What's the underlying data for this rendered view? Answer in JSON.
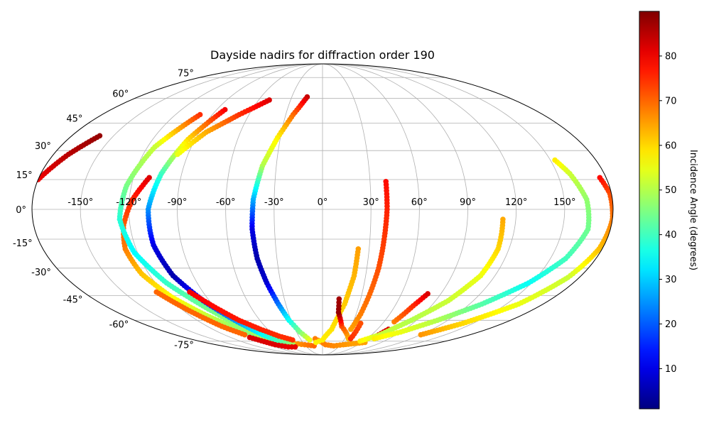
{
  "chart_data": {
    "type": "scatter",
    "projection": "mollweide",
    "title": "Dayside nadirs for diffraction order 190",
    "xlabel": "",
    "ylabel": "",
    "xlim": [
      -180,
      180
    ],
    "ylim": [
      -90,
      90
    ],
    "grid": true,
    "x_ticks": [
      -150,
      -120,
      -90,
      -60,
      -30,
      0,
      30,
      60,
      90,
      120,
      150
    ],
    "x_tick_labels": [
      "-150°",
      "-120°",
      "-90°",
      "-60°",
      "-30°",
      "0°",
      "30°",
      "60°",
      "90°",
      "120°",
      "150°"
    ],
    "y_ticks": [
      75,
      60,
      45,
      30,
      15,
      0,
      -15,
      -30,
      -45,
      -60,
      -75
    ],
    "y_tick_labels": [
      "75°",
      "60°",
      "45°",
      "30°",
      "15°",
      "0°",
      "-15°",
      "-30°",
      "-45°",
      "-60°",
      "-75°"
    ],
    "colorbar": {
      "label": "Incidence Angle (degrees)",
      "colormap": "jet",
      "range": [
        1,
        90
      ],
      "ticks": [
        10,
        20,
        30,
        40,
        50,
        60,
        70,
        80
      ],
      "tick_labels": [
        "10",
        "20",
        "30",
        "40",
        "50",
        "60",
        "70",
        "80"
      ]
    },
    "point_color_note": "color encodes incidence angle (degrees)",
    "tracks": [
      {
        "points": [
          [
            -180,
            15,
            80
          ],
          [
            -170,
            28,
            85
          ],
          [
            -160,
            38,
            88
          ]
        ]
      },
      {
        "points": [
          [
            -110,
            16,
            82
          ],
          [
            -118,
            5,
            76
          ],
          [
            -124,
            -8,
            71
          ],
          [
            -127,
            -20,
            68
          ],
          [
            -125,
            -33,
            62
          ],
          [
            -117,
            -46,
            57
          ],
          [
            -105,
            -57,
            52
          ],
          [
            -92,
            -66,
            47
          ],
          [
            -82,
            -72,
            45
          ]
        ]
      },
      {
        "points": [
          [
            -100,
            50,
            75
          ],
          [
            -115,
            32,
            52
          ],
          [
            -123,
            12,
            45
          ],
          [
            -126,
            -5,
            38
          ],
          [
            -122,
            -22,
            34
          ],
          [
            -112,
            -38,
            39
          ],
          [
            -98,
            -52,
            44
          ],
          [
            -85,
            -64,
            47
          ],
          [
            -75,
            -72,
            50
          ],
          [
            -60,
            -76,
            58
          ],
          [
            -45,
            -77,
            65
          ],
          [
            -30,
            -78,
            68
          ],
          [
            -15,
            -79,
            70
          ]
        ]
      },
      {
        "points": [
          [
            -83,
            53,
            80
          ],
          [
            -95,
            36,
            60
          ],
          [
            -103,
            18,
            40
          ],
          [
            -108,
            0,
            25
          ],
          [
            -108,
            -18,
            10
          ],
          [
            -104,
            -34,
            5
          ],
          [
            -95,
            -48,
            15
          ],
          [
            -84,
            -60,
            25
          ],
          [
            -73,
            -70,
            35
          ],
          [
            -62,
            -76,
            42
          ],
          [
            -50,
            -78,
            48
          ]
        ]
      },
      {
        "points": [
          [
            -50,
            59,
            82
          ],
          [
            -68,
            50,
            75
          ],
          [
            -85,
            40,
            64
          ],
          [
            -97,
            28,
            55
          ]
        ]
      },
      {
        "points": [
          [
            -125,
            -43,
            70
          ],
          [
            -115,
            -54,
            70
          ],
          [
            -105,
            -64,
            70
          ],
          [
            -95,
            -70,
            70
          ]
        ]
      },
      {
        "points": [
          [
            -100,
            -43,
            80
          ],
          [
            -90,
            -52,
            78
          ],
          [
            -80,
            -60,
            77
          ],
          [
            -68,
            -66,
            76
          ],
          [
            -55,
            -71,
            75
          ],
          [
            -42,
            -74,
            75
          ]
        ]
      },
      {
        "points": [
          [
            -95,
            -72,
            82
          ],
          [
            -80,
            -78,
            82
          ],
          [
            -65,
            -80,
            81
          ],
          [
            -52,
            -80,
            81
          ]
        ]
      },
      {
        "points": [
          [
            -15,
            61,
            84
          ],
          [
            -24,
            50,
            70
          ],
          [
            -32,
            37,
            58
          ],
          [
            -39,
            22,
            50
          ],
          [
            -43,
            5,
            28
          ],
          [
            -44,
            -10,
            10
          ],
          [
            -43,
            -25,
            5
          ],
          [
            -40,
            -38,
            8
          ],
          [
            -36,
            -50,
            22
          ],
          [
            -32,
            -60,
            35
          ],
          [
            -26,
            -68,
            45
          ],
          [
            -18,
            -74,
            55
          ]
        ]
      },
      {
        "points": [
          [
            -10,
            -73,
            68
          ],
          [
            5,
            -78,
            68
          ],
          [
            20,
            -79,
            67
          ],
          [
            35,
            -78,
            66
          ],
          [
            50,
            -77,
            65
          ],
          [
            65,
            -76,
            65
          ]
        ]
      },
      {
        "points": [
          [
            -10,
            -76,
            58
          ],
          [
            0,
            -74,
            58
          ],
          [
            10,
            -66,
            59
          ],
          [
            18,
            -50,
            61
          ],
          [
            22,
            -34,
            63
          ],
          [
            23,
            -20,
            65
          ]
        ]
      },
      {
        "points": [
          [
            35,
            -73,
            62
          ],
          [
            20,
            -64,
            72
          ],
          [
            14,
            -55,
            88
          ],
          [
            13,
            -47,
            87
          ]
        ]
      },
      {
        "points": [
          [
            40,
            14,
            78
          ],
          [
            40,
            0,
            76
          ],
          [
            39,
            -15,
            74
          ],
          [
            38,
            -30,
            72
          ],
          [
            36,
            -44,
            70
          ],
          [
            34,
            -56,
            68
          ],
          [
            31,
            -66,
            65
          ]
        ]
      },
      {
        "points": [
          [
            38,
            -73,
            75
          ],
          [
            38,
            -62,
            72
          ]
        ]
      },
      {
        "points": [
          [
            70,
            -61,
            68
          ],
          [
            75,
            -51,
            75
          ],
          [
            80,
            -44,
            82
          ]
        ]
      },
      {
        "points": [
          [
            67,
            -72,
            83
          ],
          [
            72,
            -66,
            82
          ]
        ]
      },
      {
        "points": [
          [
            55,
            -75,
            58
          ],
          [
            70,
            -70,
            52
          ],
          [
            85,
            -60,
            50
          ],
          [
            100,
            -48,
            52
          ],
          [
            110,
            -34,
            55
          ],
          [
            113,
            -20,
            60
          ],
          [
            112,
            -5,
            64
          ]
        ]
      },
      {
        "points": [
          [
            70,
            -73,
            58
          ],
          [
            90,
            -68,
            55
          ],
          [
            110,
            -60,
            50
          ],
          [
            130,
            -50,
            42
          ],
          [
            148,
            -38,
            35
          ],
          [
            160,
            -25,
            40
          ],
          [
            166,
            -10,
            44
          ],
          [
            164,
            5,
            47
          ],
          [
            158,
            18,
            52
          ],
          [
            153,
            25,
            58
          ]
        ]
      },
      {
        "points": [
          [
            120,
            -70,
            66
          ],
          [
            140,
            -62,
            60
          ],
          [
            160,
            -50,
            55
          ],
          [
            172,
            -35,
            52
          ],
          [
            178,
            -20,
            62
          ],
          [
            180,
            -5,
            68
          ],
          [
            179,
            8,
            72
          ],
          [
            176,
            16,
            78
          ]
        ]
      }
    ]
  }
}
